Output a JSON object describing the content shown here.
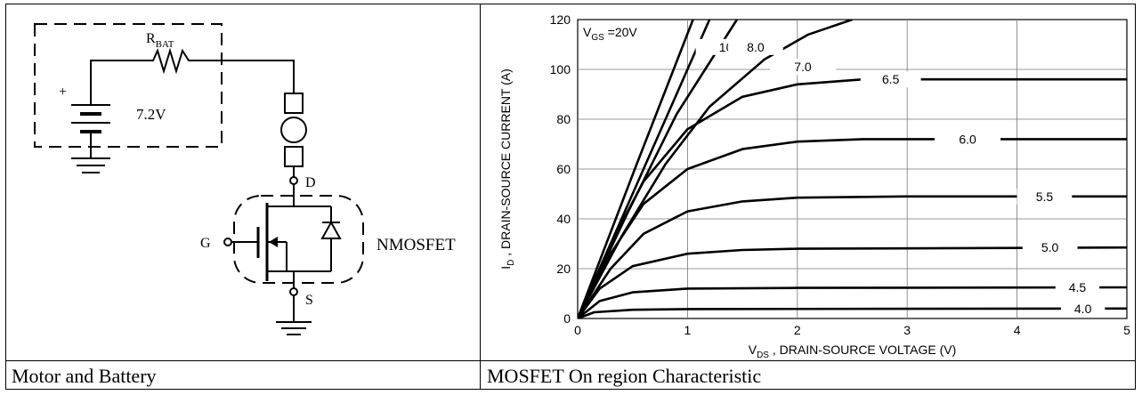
{
  "captions": {
    "left": "Motor and Battery",
    "right": "MOSFET On region Characteristic"
  },
  "circuit": {
    "resistor_label": "R",
    "resistor_subscript": "BAT",
    "battery_plus": "+",
    "battery_voltage": "7.2V",
    "drain_label": "D",
    "gate_label": "G",
    "source_label": "S",
    "mosfet_label": "NMOSFET"
  },
  "chart_data": {
    "type": "line",
    "title": "",
    "xlabel_main": "V",
    "xlabel_sub": "DS",
    "xlabel_rest": " , DRAIN-SOURCE VOLTAGE (V)",
    "ylabel_main": "I",
    "ylabel_sub": "D",
    "ylabel_rest": " , DRAIN-SOURCE CURRENT (A)",
    "xlim": [
      0,
      5
    ],
    "ylim": [
      0,
      120
    ],
    "xticks": [
      "0",
      "1",
      "2",
      "3",
      "4",
      "5"
    ],
    "yticks": [
      "0",
      "20",
      "40",
      "60",
      "80",
      "100",
      "120"
    ],
    "grid": true,
    "series": [
      {
        "name": "V_GS =20V",
        "label_main": "V",
        "label_sub": "GS",
        "label_rest": " =20V",
        "points": [
          [
            0,
            0
          ],
          [
            0.52,
            60
          ],
          [
            1.05,
            120
          ]
        ]
      },
      {
        "name": "10",
        "label": "10",
        "points": [
          [
            0,
            0
          ],
          [
            0.6,
            60
          ],
          [
            1.2,
            120
          ]
        ]
      },
      {
        "name": "8.0",
        "label": "8.0",
        "points": [
          [
            0,
            0
          ],
          [
            0.45,
            42
          ],
          [
            0.9,
            82
          ],
          [
            1.45,
            120
          ]
        ]
      },
      {
        "name": "7.0",
        "label": "7.0",
        "points": [
          [
            0,
            0
          ],
          [
            0.4,
            33
          ],
          [
            0.8,
            62
          ],
          [
            1.2,
            85
          ],
          [
            1.7,
            104
          ],
          [
            2.1,
            114
          ],
          [
            2.5,
            120
          ]
        ]
      },
      {
        "name": "6.5",
        "label": "6.5",
        "points": [
          [
            0,
            0
          ],
          [
            0.3,
            30
          ],
          [
            0.6,
            55
          ],
          [
            1,
            76
          ],
          [
            1.5,
            89
          ],
          [
            2,
            94
          ],
          [
            2.6,
            96
          ],
          [
            5,
            96
          ]
        ]
      },
      {
        "name": "6.0",
        "label": "6.0",
        "points": [
          [
            0,
            0
          ],
          [
            0.3,
            26
          ],
          [
            0.6,
            46
          ],
          [
            1,
            60
          ],
          [
            1.5,
            68
          ],
          [
            2,
            71
          ],
          [
            2.6,
            72
          ],
          [
            5,
            72
          ]
        ]
      },
      {
        "name": "5.5",
        "label": "5.5",
        "points": [
          [
            0,
            0
          ],
          [
            0.3,
            20
          ],
          [
            0.6,
            34
          ],
          [
            1,
            43
          ],
          [
            1.5,
            47
          ],
          [
            2,
            48.5
          ],
          [
            3,
            49
          ],
          [
            5,
            49
          ]
        ]
      },
      {
        "name": "5.0",
        "label": "5.0",
        "points": [
          [
            0,
            0
          ],
          [
            0.2,
            12
          ],
          [
            0.5,
            21
          ],
          [
            1,
            26
          ],
          [
            1.5,
            27.5
          ],
          [
            2,
            28
          ],
          [
            5,
            28.5
          ]
        ]
      },
      {
        "name": "4.5",
        "label": "4.5",
        "points": [
          [
            0,
            0
          ],
          [
            0.2,
            7
          ],
          [
            0.5,
            10.5
          ],
          [
            1,
            12
          ],
          [
            2,
            12.3
          ],
          [
            5,
            12.5
          ]
        ]
      },
      {
        "name": "4.0",
        "label": "4.0",
        "points": [
          [
            0,
            0
          ],
          [
            0.15,
            2.5
          ],
          [
            0.5,
            3.5
          ],
          [
            1,
            3.8
          ],
          [
            5,
            4
          ]
        ]
      }
    ]
  }
}
